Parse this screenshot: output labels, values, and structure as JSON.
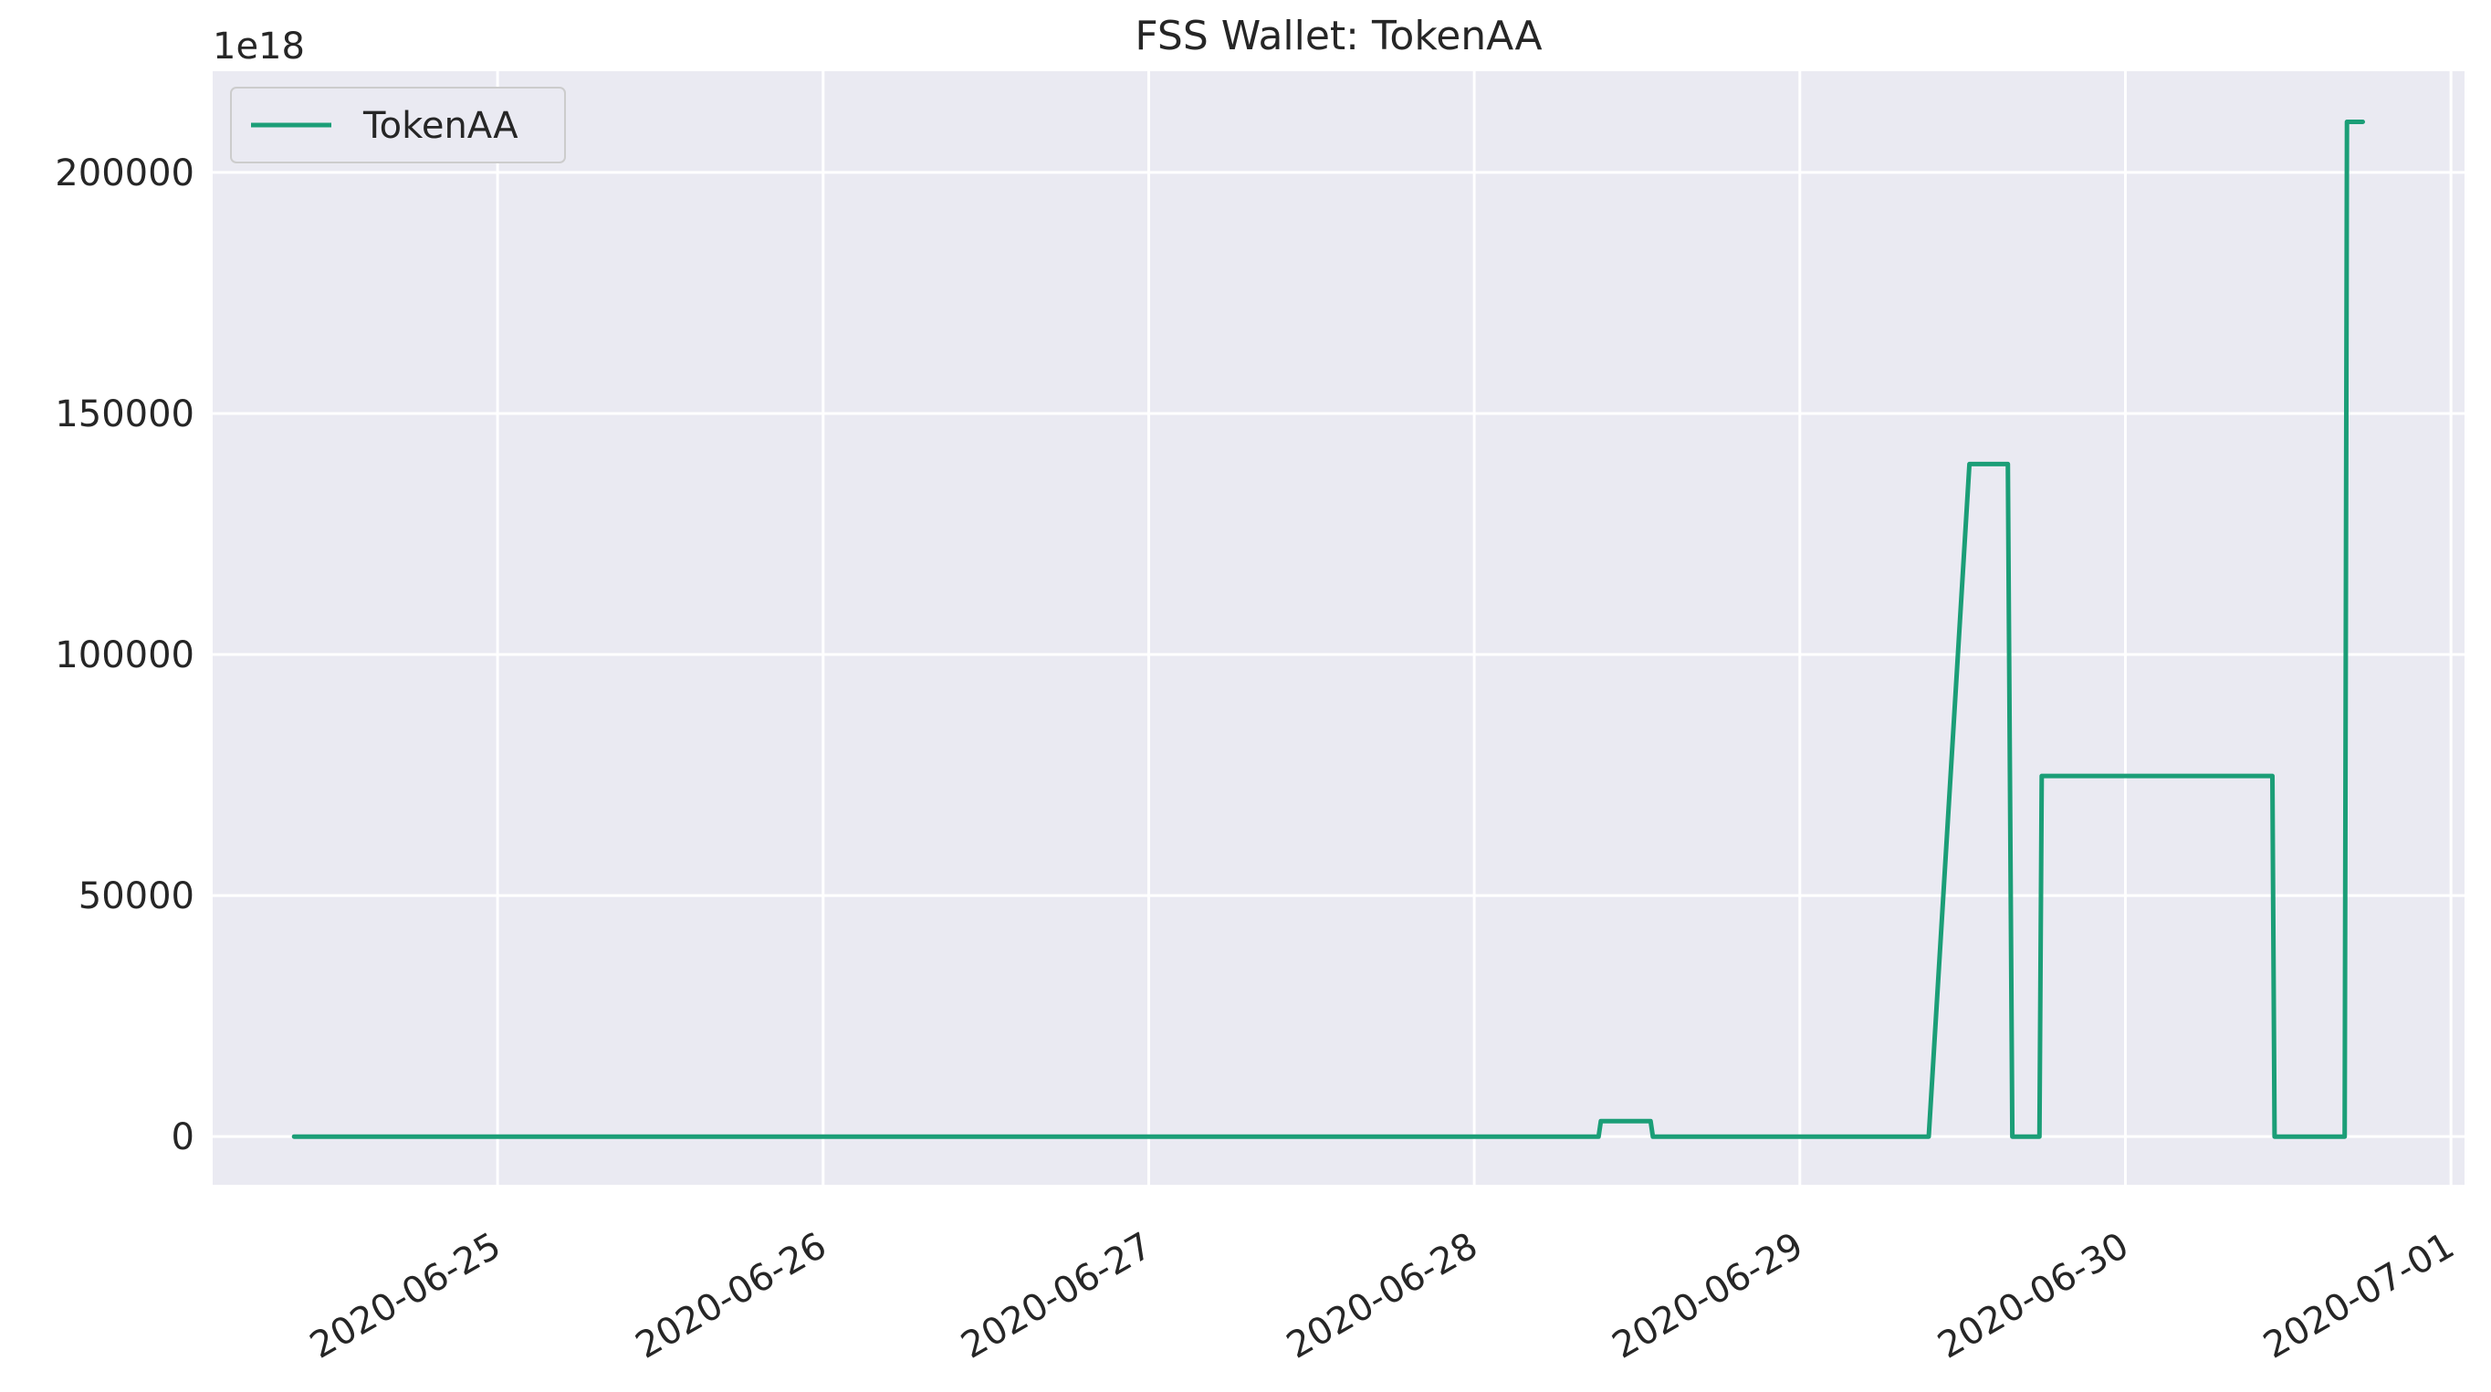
{
  "chart_data": {
    "type": "line",
    "title": "FSS Wallet: TokenAA",
    "xlabel": "",
    "ylabel": "",
    "offset_text": "1e18",
    "grid": true,
    "legend_position": "top-left",
    "x_ticks": [
      "2020-06-25",
      "2020-06-26",
      "2020-06-27",
      "2020-06-28",
      "2020-06-29",
      "2020-06-30",
      "2020-07-01"
    ],
    "y_ticks": [
      0,
      50000,
      100000,
      150000,
      200000
    ],
    "xlim": [
      "2020-06-24T03:00",
      "2020-07-01T01:00"
    ],
    "ylim": [
      -10000,
      221000
    ],
    "series": [
      {
        "name": "TokenAA",
        "color": "#1b9e77",
        "points": [
          {
            "x": "2020-06-24T09:00",
            "y": 0
          },
          {
            "x": "2020-06-28T09:10",
            "y": 0
          },
          {
            "x": "2020-06-28T09:20",
            "y": 3200
          },
          {
            "x": "2020-06-28T13:00",
            "y": 3200
          },
          {
            "x": "2020-06-28T13:10",
            "y": 0
          },
          {
            "x": "2020-06-29T09:30",
            "y": 0
          },
          {
            "x": "2020-06-29T12:30",
            "y": 139500
          },
          {
            "x": "2020-06-29T15:20",
            "y": 139500
          },
          {
            "x": "2020-06-29T15:40",
            "y": 0
          },
          {
            "x": "2020-06-29T17:40",
            "y": 0
          },
          {
            "x": "2020-06-29T17:50",
            "y": 74800
          },
          {
            "x": "2020-06-30T10:50",
            "y": 74800
          },
          {
            "x": "2020-06-30T11:00",
            "y": 0
          },
          {
            "x": "2020-06-30T16:10",
            "y": 0
          },
          {
            "x": "2020-06-30T16:20",
            "y": 210500
          },
          {
            "x": "2020-06-30T17:30",
            "y": 210500
          }
        ]
      }
    ]
  }
}
